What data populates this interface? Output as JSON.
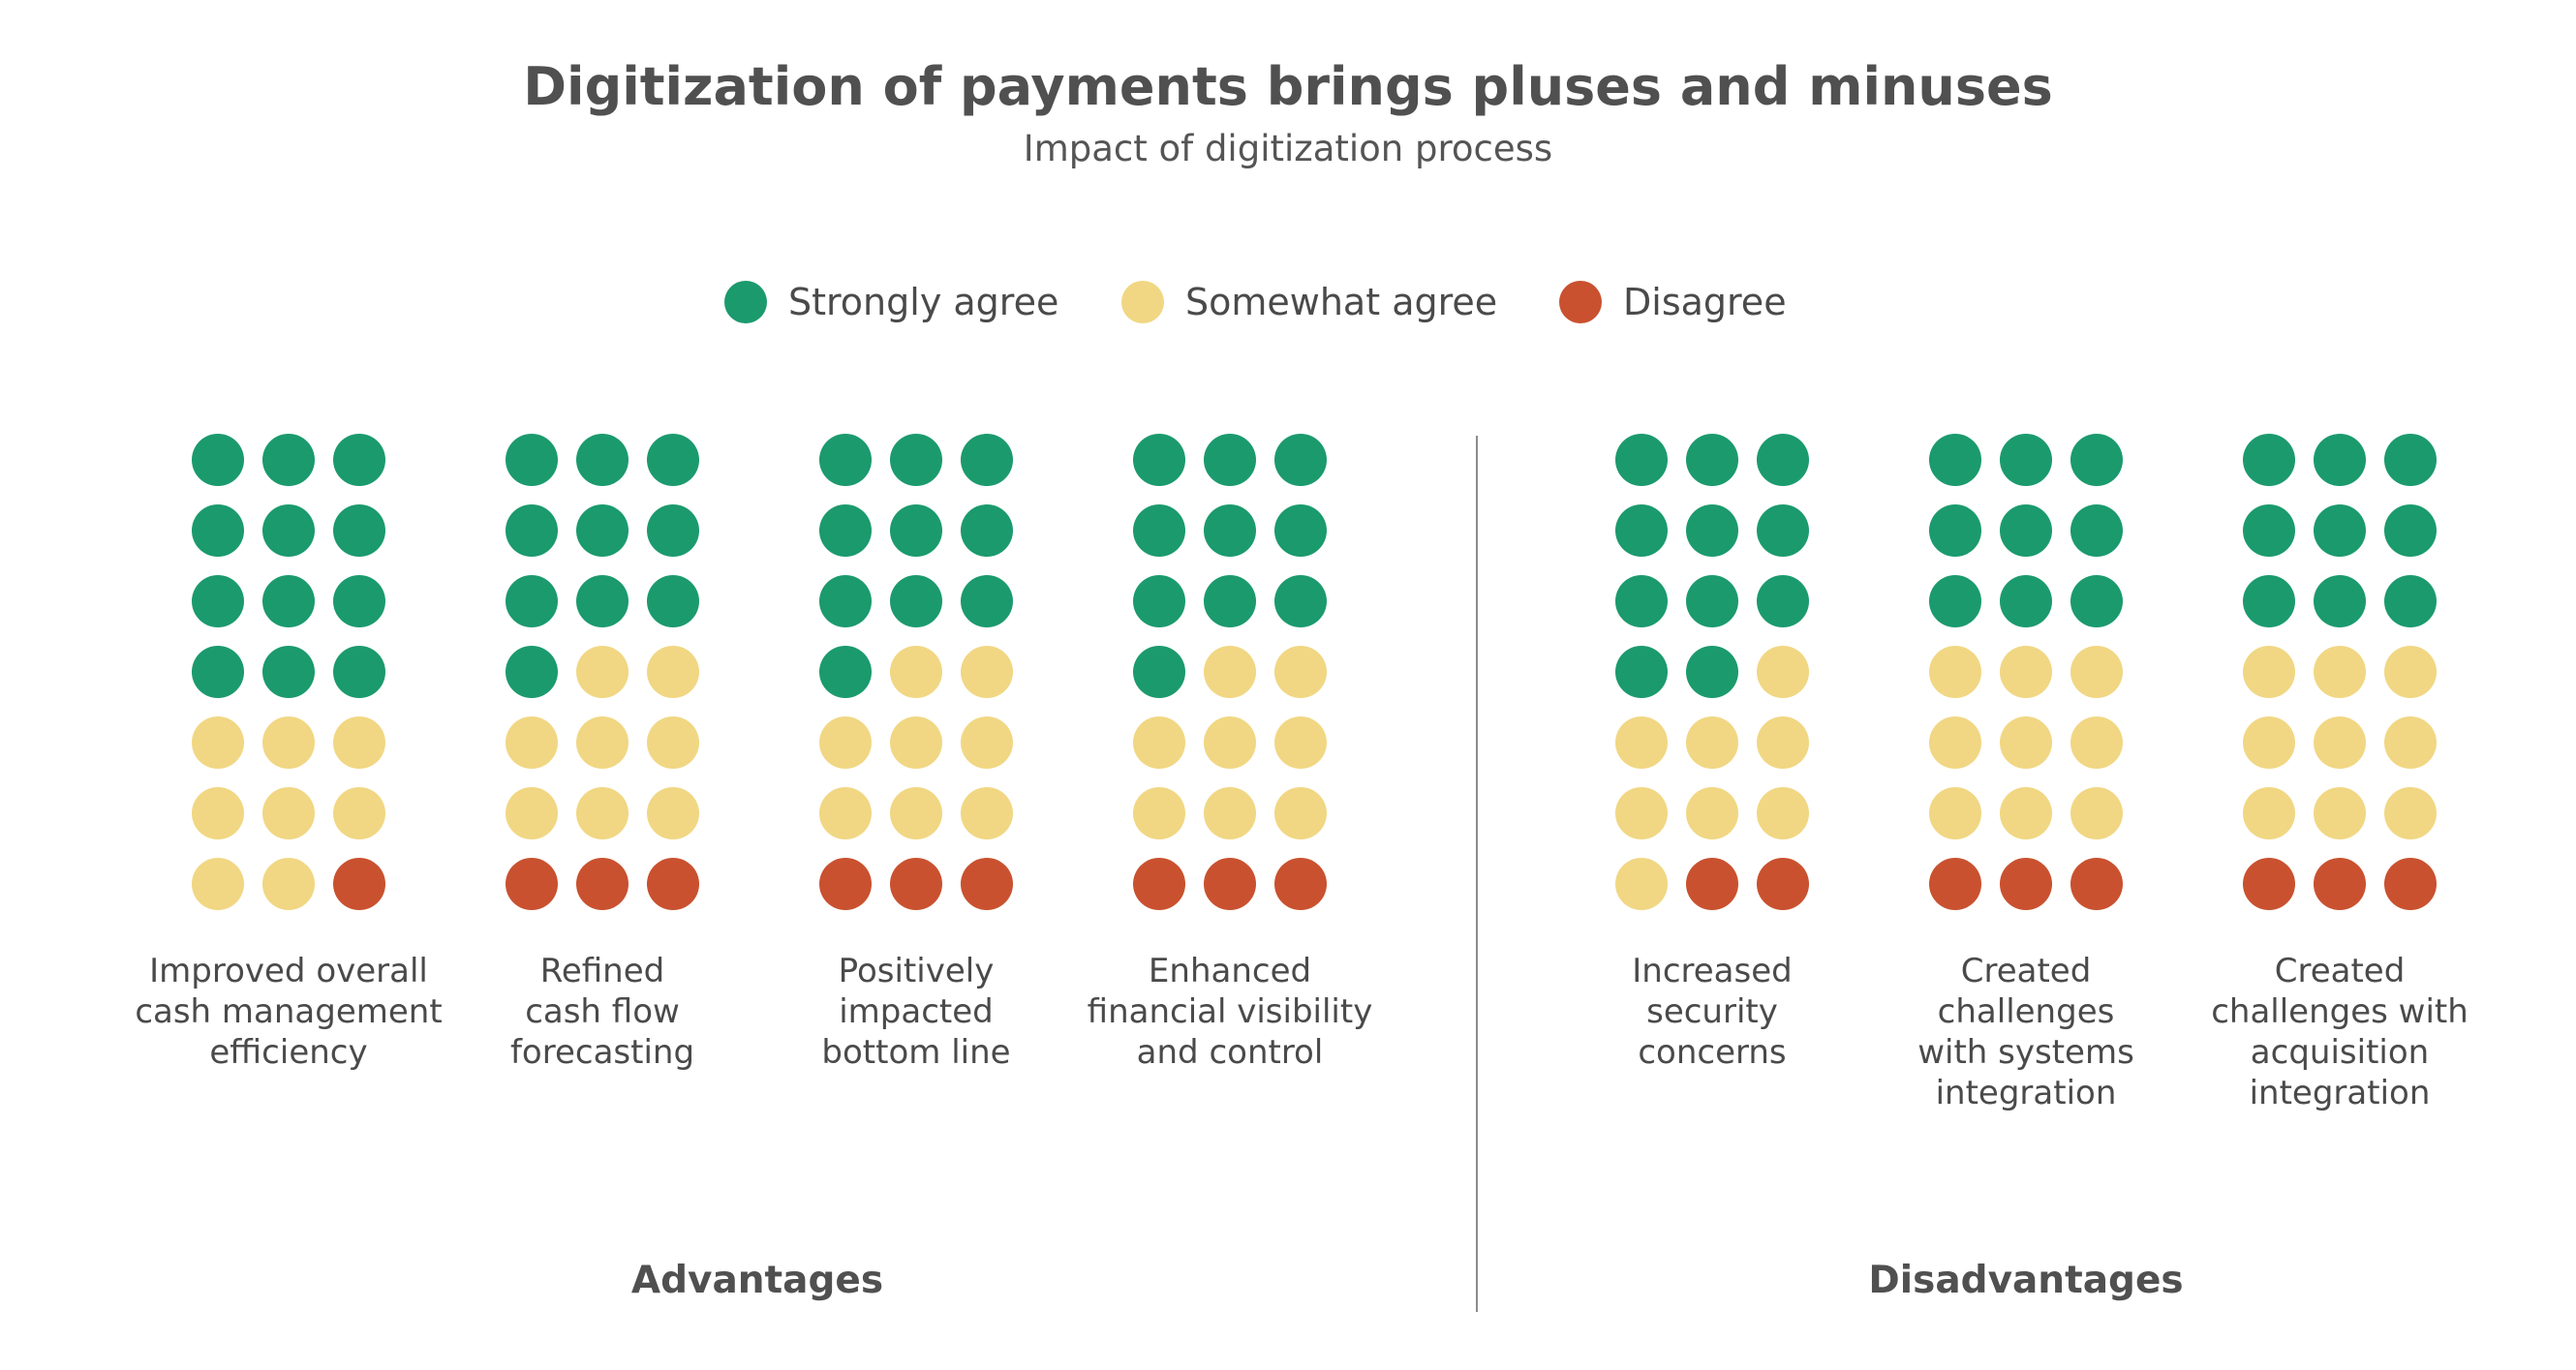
{
  "chart_data": {
    "type": "waffle",
    "title": "Digitization of payments brings pluses and minuses",
    "subtitle": "Impact of digitization process",
    "legend": [
      {
        "name": "Strongly agree",
        "color": "#1b9a6e"
      },
      {
        "name": "Somewhat agree",
        "color": "#f1d783"
      },
      {
        "name": "Disagree",
        "color": "#c9512f"
      }
    ],
    "legend_position": "top-center",
    "grid": {
      "columns": 3,
      "rows": 7
    },
    "groups": [
      {
        "label": "Advantages"
      },
      {
        "label": "Disadvantages"
      }
    ],
    "categories": [
      {
        "label": "Improved overall\ncash management\nefficiency",
        "group": "Advantages",
        "strongly_agree": 12,
        "somewhat_agree": 8,
        "disagree": 1
      },
      {
        "label": "Refined\ncash flow\nforecasting",
        "group": "Advantages",
        "strongly_agree": 10,
        "somewhat_agree": 8,
        "disagree": 3
      },
      {
        "label": "Positively\nimpacted\nbottom line",
        "group": "Advantages",
        "strongly_agree": 10,
        "somewhat_agree": 8,
        "disagree": 3
      },
      {
        "label": "Enhanced\nfinancial visibility\nand control",
        "group": "Advantages",
        "strongly_agree": 10,
        "somewhat_agree": 8,
        "disagree": 3
      },
      {
        "label": "Increased\nsecurity\nconcerns",
        "group": "Disadvantages",
        "strongly_agree": 11,
        "somewhat_agree": 8,
        "disagree": 2
      },
      {
        "label": "Created\nchallenges\nwith systems\nintegration",
        "group": "Disadvantages",
        "strongly_agree": 9,
        "somewhat_agree": 9,
        "disagree": 3
      },
      {
        "label": "Created\nchallenges with\nacquisition\nintegration",
        "group": "Disadvantages",
        "strongly_agree": 9,
        "somewhat_agree": 9,
        "disagree": 3
      }
    ]
  }
}
